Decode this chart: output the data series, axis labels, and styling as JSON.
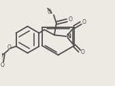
{
  "bg_color": "#ede9e3",
  "line_color": "#4a4a4a",
  "lw": 1.3,
  "figsize": [
    1.69,
    1.26
  ],
  "dpi": 100,
  "xlim": [
    0,
    169
  ],
  "ylim": [
    0,
    126
  ]
}
